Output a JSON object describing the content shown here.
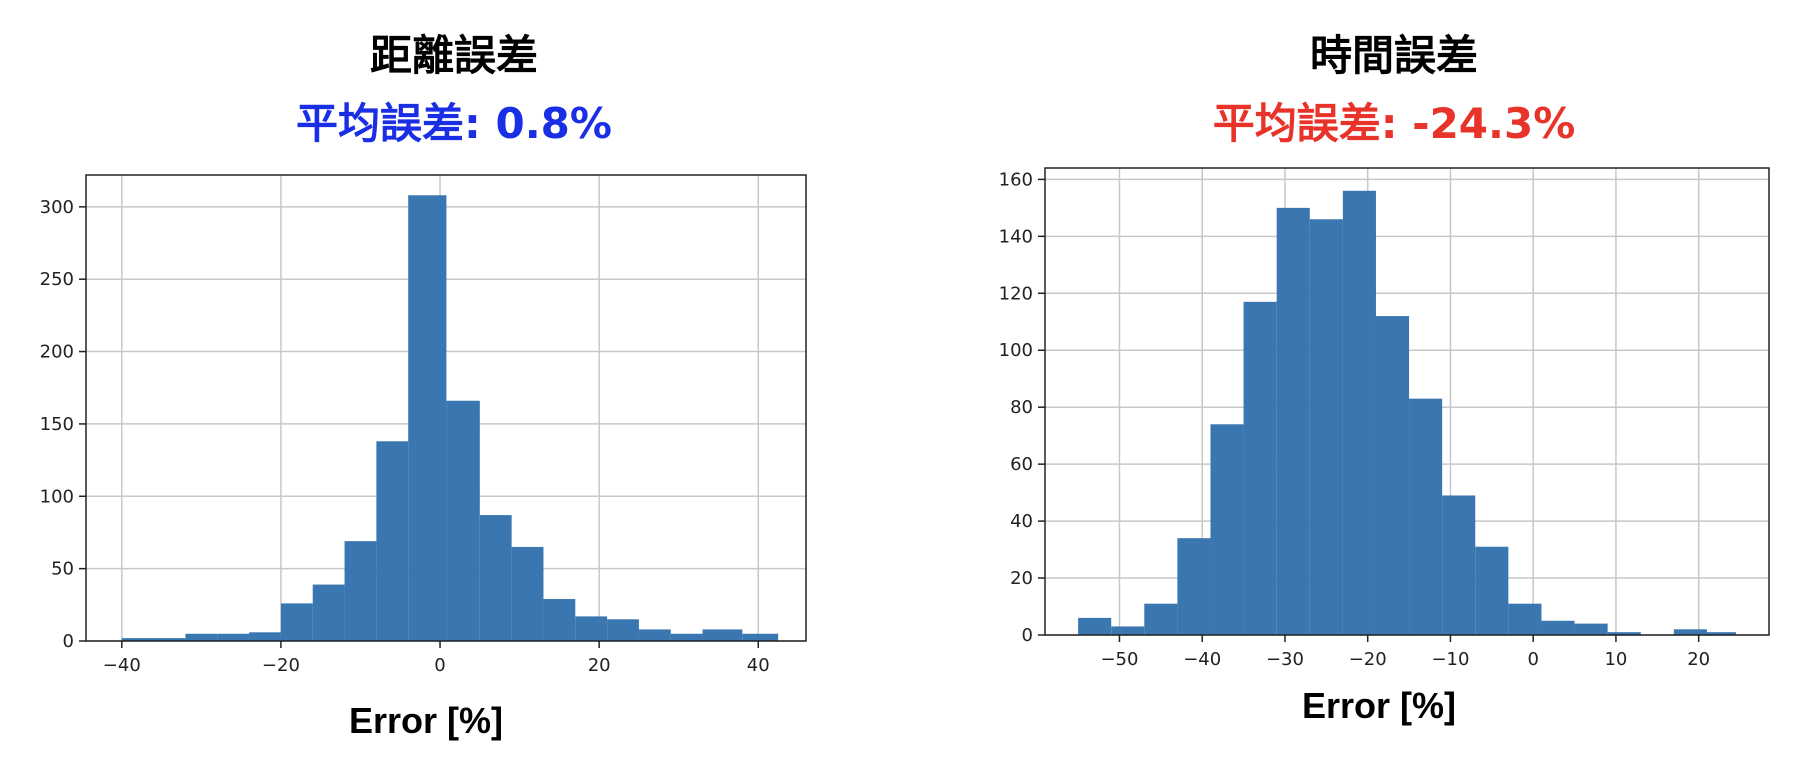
{
  "colors": {
    "bar": "#3a76b0",
    "grid": "#c8c8c8",
    "frame": "#222222"
  },
  "chart_data": [
    {
      "type": "bar",
      "title": "距離誤差",
      "subtitle": "平均誤差: 0.8%",
      "subtitle_color": "#1a2ee6",
      "xlabel": "Error [%]",
      "ylabel": "",
      "xlim": [
        -44.5,
        46
      ],
      "ylim": [
        0,
        322
      ],
      "xticks": [
        -40,
        -20,
        0,
        20,
        40
      ],
      "yticks": [
        0,
        50,
        100,
        150,
        200,
        250,
        300
      ],
      "grid": true,
      "bin_edges": [
        -40,
        -36,
        -32,
        -28,
        -24,
        -20,
        -16,
        -12,
        -8,
        -4,
        0.8,
        5,
        9,
        13,
        17,
        21,
        25,
        29,
        33,
        38,
        42.5
      ],
      "values": [
        2,
        2,
        5,
        5,
        6,
        26,
        39,
        69,
        138,
        308,
        166,
        87,
        65,
        29,
        17,
        15,
        8,
        5,
        8,
        5
      ]
    },
    {
      "type": "bar",
      "title": "時間誤差",
      "subtitle": "平均誤差: -24.3%",
      "subtitle_color": "#e8332a",
      "xlabel": "Error [%]",
      "ylabel": "",
      "xlim": [
        -59,
        28.5
      ],
      "ylim": [
        0,
        164
      ],
      "xticks": [
        -50,
        -40,
        -30,
        -20,
        -10,
        0,
        10,
        20
      ],
      "yticks": [
        0,
        20,
        40,
        60,
        80,
        100,
        120,
        140,
        160
      ],
      "grid": true,
      "bin_edges": [
        -55,
        -51,
        -47,
        -43,
        -39,
        -35,
        -31,
        -27,
        -23,
        -19,
        -15,
        -11,
        -7,
        -3,
        1,
        5,
        9,
        13,
        17,
        21,
        24.5
      ],
      "values": [
        6,
        3,
        11,
        34,
        74,
        117,
        150,
        146,
        156,
        112,
        83,
        49,
        31,
        11,
        5,
        4,
        1,
        0,
        2,
        1
      ]
    }
  ]
}
